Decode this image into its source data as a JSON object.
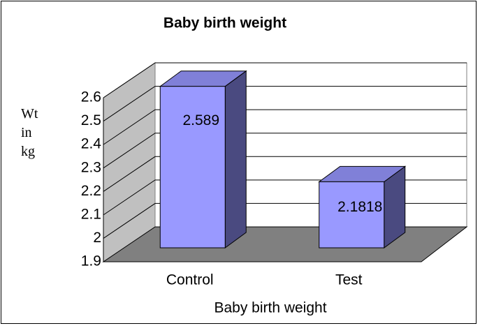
{
  "chart_data": {
    "type": "bar3d",
    "title": "Baby birth weight",
    "xlabel": "Baby birth weight",
    "ylabel": "Wt in kg",
    "categories": [
      "Control",
      "Test"
    ],
    "values": [
      2.589,
      2.1818
    ],
    "color": "#9999ff",
    "ylim": [
      1.9,
      2.6
    ],
    "yticks": [
      1.9,
      2,
      2.1,
      2.2,
      2.3,
      2.4,
      2.5,
      2.6
    ],
    "grid": true
  }
}
